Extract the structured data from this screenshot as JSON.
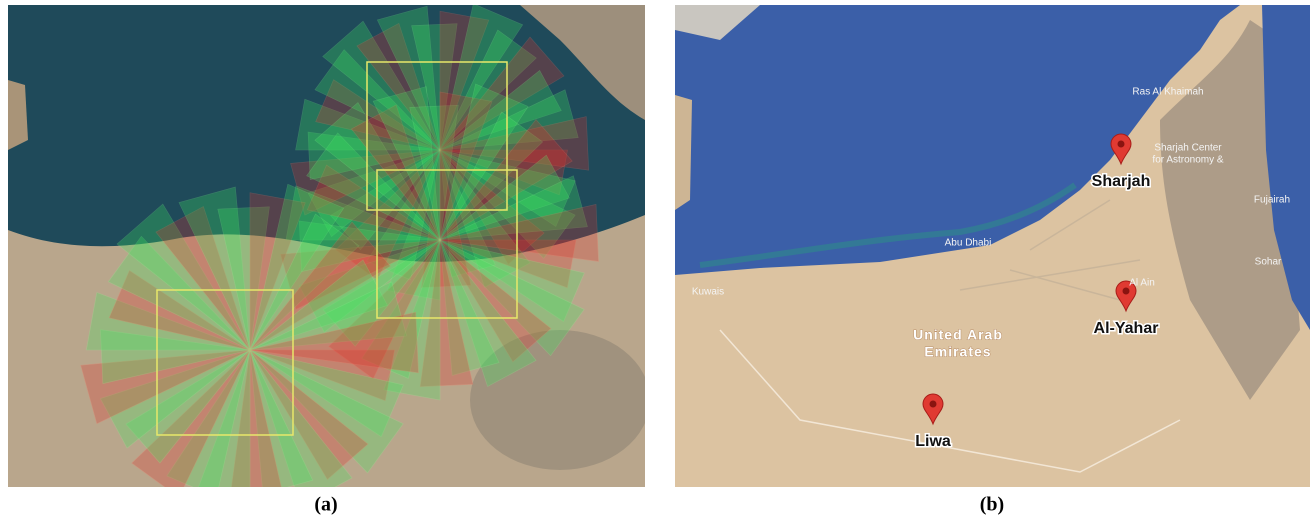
{
  "panel_a": {
    "caption": "(a)"
  },
  "panel_b": {
    "caption": "(b)",
    "places": [
      "Sharjah",
      "Al-Yahar",
      "Liwa"
    ],
    "map_labels": [
      "Ras Al Khaimah",
      "Sharjah Center",
      "for Astronomy &",
      "Fujairah",
      "Sohar",
      "Abu Dhabi",
      "Al Ain",
      "Kuwais",
      "United Arab",
      "Emirates"
    ]
  }
}
